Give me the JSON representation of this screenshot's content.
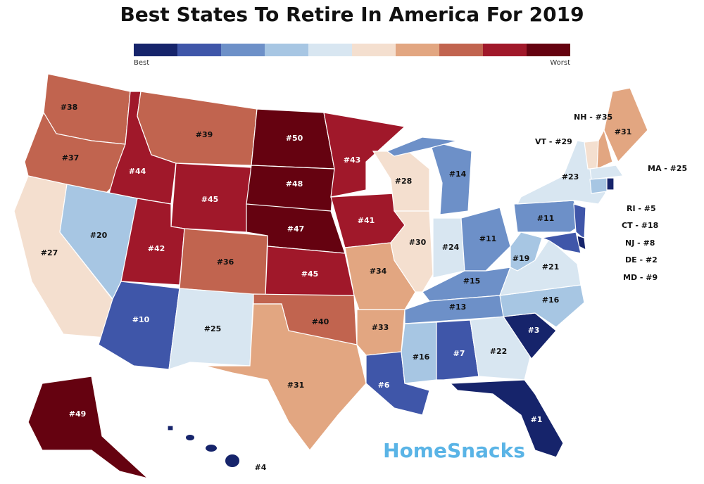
{
  "title": "Best States To Retire In America For 2019",
  "legend": {
    "colors": [
      "#16246b",
      "#3f56a9",
      "#6d90c8",
      "#a7c6e3",
      "#d8e6f1",
      "#f4dfcf",
      "#e2a681",
      "#c1644f",
      "#a0182a",
      "#650210"
    ],
    "low": "Best",
    "high": "Worst"
  },
  "regions": [
    {
      "label": "#38",
      "color": "#c1644f"
    },
    {
      "label": "#37",
      "color": "#c1644f"
    },
    {
      "label": "#27",
      "color": "#f4dfcf"
    },
    {
      "label": "#44",
      "color": "#a0182a"
    },
    {
      "label": "#20",
      "color": "#a7c6e3"
    },
    {
      "label": "#39",
      "color": "#c1644f"
    },
    {
      "label": "#45",
      "color": "#a0182a"
    },
    {
      "label": "#42",
      "color": "#a0182a"
    },
    {
      "label": "#36",
      "color": "#c1644f"
    },
    {
      "label": "#10",
      "color": "#3f56a9"
    },
    {
      "label": "#25",
      "color": "#d8e6f1"
    },
    {
      "label": "#50",
      "color": "#650210"
    },
    {
      "label": "#48",
      "color": "#650210"
    },
    {
      "label": "#47",
      "color": "#650210"
    },
    {
      "label": "#45",
      "color": "#a0182a"
    },
    {
      "label": "#40",
      "color": "#c1644f"
    },
    {
      "label": "#31",
      "color": "#e2a681"
    },
    {
      "label": "#43",
      "color": "#a0182a"
    },
    {
      "label": "#41",
      "color": "#a0182a"
    },
    {
      "label": "#34",
      "color": "#e2a681"
    },
    {
      "label": "#33",
      "color": "#e2a681"
    },
    {
      "label": "#6",
      "color": "#3f56a9"
    },
    {
      "label": "#28",
      "color": "#f4dfcf"
    },
    {
      "label": "#30",
      "color": "#f4dfcf"
    },
    {
      "label": "#14",
      "color": "#6d90c8"
    },
    {
      "label": "#24",
      "color": "#d8e6f1"
    },
    {
      "label": "#11",
      "color": "#6d90c8"
    },
    {
      "label": "#15",
      "color": "#6d90c8"
    },
    {
      "label": "#13",
      "color": "#6d90c8"
    },
    {
      "label": "#16",
      "color": "#a7c6e3"
    },
    {
      "label": "#7",
      "color": "#3f56a9"
    },
    {
      "label": "#22",
      "color": "#d8e6f1"
    },
    {
      "label": "#1",
      "color": "#16246b"
    },
    {
      "label": "#3",
      "color": "#16246b"
    },
    {
      "label": "#16",
      "color": "#a7c6e3"
    },
    {
      "label": "#21",
      "color": "#d8e6f1"
    },
    {
      "label": "#19",
      "color": "#a7c6e3"
    },
    {
      "label": "#11",
      "color": "#6d90c8"
    },
    {
      "label": "#23",
      "color": "#d8e6f1"
    },
    {
      "color": "#3f56a9"
    },
    {
      "color": "#16246b"
    },
    {
      "color": "#3f56a9"
    },
    {
      "color": "#f4dfcf"
    },
    {
      "color": "#e2a681"
    },
    {
      "label": "#31",
      "color": "#e2a681"
    },
    {
      "color": "#d8e6f1"
    },
    {
      "color": "#a7c6e3"
    },
    {
      "color": "#16246b"
    },
    {
      "label": "#49",
      "color": "#650210"
    },
    {
      "label": "#4",
      "color": "#16246b"
    }
  ],
  "callouts": [
    "NH - #35",
    "VT - #29",
    "MA - #25",
    "RI - #5",
    "CT - #18",
    "NJ - #8",
    "DE - #2",
    "MD - #9"
  ],
  "watermark": "HomeSnacks"
}
